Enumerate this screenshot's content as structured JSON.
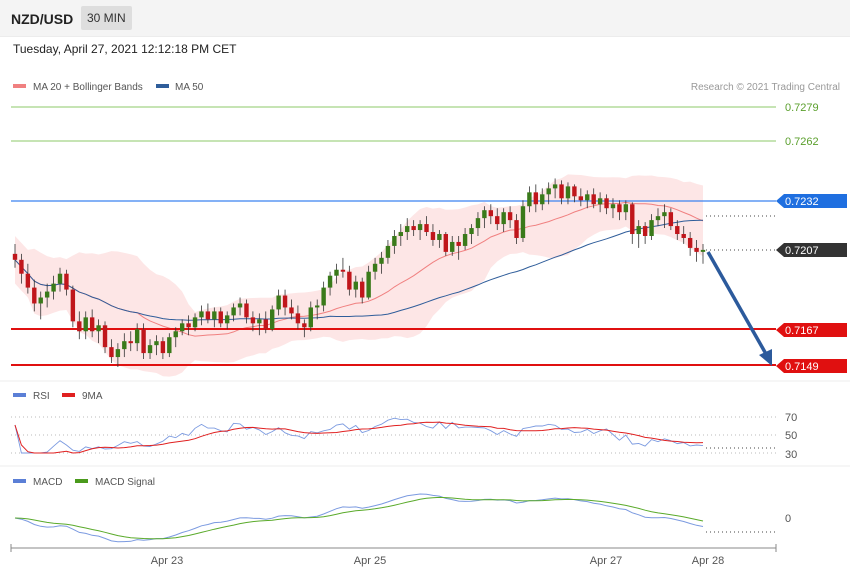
{
  "header": {
    "symbol": "NZD/USD",
    "timeframe": "30 MIN"
  },
  "timestamp": "Tuesday, April 27, 2021 12:12:18 PM CET",
  "legend": {
    "price": [
      {
        "label": "MA 20 + Bollinger Bands",
        "color": "#f08080"
      },
      {
        "label": "MA 50",
        "color": "#2f5d9a"
      }
    ],
    "rsi": [
      {
        "label": "RSI",
        "color": "#5b7fd6"
      },
      {
        "label": "9MA",
        "color": "#e02020"
      }
    ],
    "macd": [
      {
        "label": "MACD",
        "color": "#5b7fd6"
      },
      {
        "label": "MACD Signal",
        "color": "#4a9a1c"
      }
    ]
  },
  "credit": "Research © 2021 Trading Central",
  "chart_data": {
    "type": "candlestick",
    "x_labels": [
      "Apr 23",
      "Apr 25",
      "Apr 27",
      "Apr 28"
    ],
    "price_levels": [
      {
        "value": "0.7279",
        "kind": "resistance",
        "color": "#6db33f"
      },
      {
        "value": "0.7262",
        "kind": "resistance",
        "color": "#6db33f"
      },
      {
        "value": "0.7232",
        "kind": "pivot",
        "color": "#1f6fe0"
      },
      {
        "value": "0.7207",
        "kind": "last",
        "color": "#333333"
      },
      {
        "value": "0.7167",
        "kind": "support",
        "color": "#e01010"
      },
      {
        "value": "0.7149",
        "kind": "support",
        "color": "#e01010"
      }
    ],
    "forecast": {
      "from": 0.7207,
      "to": 0.7149,
      "direction": "down"
    },
    "price_range": [
      0.7149,
      0.7279
    ],
    "candles": [
      [
        0.7205,
        0.721,
        0.7198,
        0.7202
      ],
      [
        0.7202,
        0.7205,
        0.719,
        0.7195
      ],
      [
        0.7195,
        0.72,
        0.7185,
        0.7188
      ],
      [
        0.7188,
        0.7192,
        0.7176,
        0.718
      ],
      [
        0.718,
        0.7186,
        0.7172,
        0.7183
      ],
      [
        0.7183,
        0.719,
        0.7178,
        0.7186
      ],
      [
        0.7186,
        0.7194,
        0.7182,
        0.719
      ],
      [
        0.719,
        0.7198,
        0.7186,
        0.7195
      ],
      [
        0.7195,
        0.7197,
        0.7184,
        0.7187
      ],
      [
        0.7187,
        0.7189,
        0.7168,
        0.7171
      ],
      [
        0.7171,
        0.7176,
        0.7162,
        0.7166
      ],
      [
        0.7166,
        0.7176,
        0.7162,
        0.7173
      ],
      [
        0.7173,
        0.7177,
        0.7163,
        0.7166
      ],
      [
        0.7166,
        0.7172,
        0.716,
        0.7169
      ],
      [
        0.7169,
        0.7171,
        0.7155,
        0.7158
      ],
      [
        0.7158,
        0.7162,
        0.715,
        0.7153
      ],
      [
        0.7153,
        0.716,
        0.7148,
        0.7157
      ],
      [
        0.7157,
        0.7165,
        0.7153,
        0.7161
      ],
      [
        0.7161,
        0.7166,
        0.7156,
        0.716
      ],
      [
        0.716,
        0.717,
        0.7156,
        0.7167
      ],
      [
        0.7167,
        0.717,
        0.7152,
        0.7155
      ],
      [
        0.7155,
        0.7162,
        0.7152,
        0.7159
      ],
      [
        0.7159,
        0.7164,
        0.7154,
        0.7161
      ],
      [
        0.7161,
        0.7163,
        0.7152,
        0.7155
      ],
      [
        0.7155,
        0.7165,
        0.7153,
        0.7163
      ],
      [
        0.7163,
        0.7168,
        0.7158,
        0.7166
      ],
      [
        0.7166,
        0.7172,
        0.7164,
        0.717
      ],
      [
        0.717,
        0.7174,
        0.7164,
        0.7168
      ],
      [
        0.7168,
        0.7175,
        0.7166,
        0.7173
      ],
      [
        0.7173,
        0.7179,
        0.7169,
        0.7176
      ],
      [
        0.7176,
        0.718,
        0.717,
        0.7172
      ],
      [
        0.7172,
        0.7178,
        0.7168,
        0.7176
      ],
      [
        0.7176,
        0.7178,
        0.7168,
        0.717
      ],
      [
        0.717,
        0.7176,
        0.7167,
        0.7174
      ],
      [
        0.7174,
        0.718,
        0.7171,
        0.7178
      ],
      [
        0.7178,
        0.7183,
        0.7174,
        0.718
      ],
      [
        0.718,
        0.7182,
        0.717,
        0.7173
      ],
      [
        0.7173,
        0.7176,
        0.7166,
        0.717
      ],
      [
        0.717,
        0.7175,
        0.7164,
        0.7172
      ],
      [
        0.7172,
        0.7176,
        0.7165,
        0.7167
      ],
      [
        0.7167,
        0.7179,
        0.7166,
        0.7177
      ],
      [
        0.7177,
        0.7187,
        0.7174,
        0.7184
      ],
      [
        0.7184,
        0.7187,
        0.7174,
        0.7178
      ],
      [
        0.7178,
        0.7182,
        0.7172,
        0.7175
      ],
      [
        0.7175,
        0.7179,
        0.7167,
        0.717
      ],
      [
        0.717,
        0.7172,
        0.7163,
        0.7168
      ],
      [
        0.7168,
        0.7181,
        0.7166,
        0.7178
      ],
      [
        0.7178,
        0.7182,
        0.7172,
        0.7179
      ],
      [
        0.7179,
        0.7191,
        0.7176,
        0.7188
      ],
      [
        0.7188,
        0.7196,
        0.7184,
        0.7194
      ],
      [
        0.7194,
        0.72,
        0.719,
        0.7197
      ],
      [
        0.7197,
        0.7203,
        0.7193,
        0.7196
      ],
      [
        0.7196,
        0.7199,
        0.7184,
        0.7187
      ],
      [
        0.7187,
        0.7194,
        0.7183,
        0.7191
      ],
      [
        0.7191,
        0.7193,
        0.718,
        0.7183
      ],
      [
        0.7183,
        0.7199,
        0.7182,
        0.7196
      ],
      [
        0.7196,
        0.7203,
        0.7192,
        0.72
      ],
      [
        0.72,
        0.7206,
        0.7195,
        0.7203
      ],
      [
        0.7203,
        0.7212,
        0.72,
        0.7209
      ],
      [
        0.7209,
        0.7217,
        0.7205,
        0.7214
      ],
      [
        0.7214,
        0.722,
        0.7209,
        0.7216
      ],
      [
        0.7216,
        0.7223,
        0.7212,
        0.7219
      ],
      [
        0.7219,
        0.7222,
        0.7214,
        0.7217
      ],
      [
        0.7217,
        0.7222,
        0.7212,
        0.722
      ],
      [
        0.722,
        0.7224,
        0.7214,
        0.7216
      ],
      [
        0.7216,
        0.722,
        0.7209,
        0.7212
      ],
      [
        0.7212,
        0.7217,
        0.7208,
        0.7215
      ],
      [
        0.7215,
        0.7216,
        0.7204,
        0.7206
      ],
      [
        0.7206,
        0.7214,
        0.7204,
        0.7211
      ],
      [
        0.7211,
        0.7214,
        0.7202,
        0.7209
      ],
      [
        0.7209,
        0.7218,
        0.7207,
        0.7215
      ],
      [
        0.7215,
        0.722,
        0.721,
        0.7218
      ],
      [
        0.7218,
        0.7226,
        0.7214,
        0.7223
      ],
      [
        0.7223,
        0.7229,
        0.7218,
        0.7227
      ],
      [
        0.7227,
        0.723,
        0.722,
        0.7224
      ],
      [
        0.7224,
        0.7228,
        0.7217,
        0.722
      ],
      [
        0.722,
        0.7228,
        0.7216,
        0.7226
      ],
      [
        0.7226,
        0.7229,
        0.7218,
        0.7222
      ],
      [
        0.7222,
        0.7225,
        0.721,
        0.7213
      ],
      [
        0.7213,
        0.7232,
        0.7211,
        0.7229
      ],
      [
        0.7229,
        0.7239,
        0.7226,
        0.7236
      ],
      [
        0.7236,
        0.724,
        0.7226,
        0.723
      ],
      [
        0.723,
        0.7238,
        0.7227,
        0.7235
      ],
      [
        0.7235,
        0.7241,
        0.723,
        0.7238
      ],
      [
        0.7238,
        0.7243,
        0.7233,
        0.724
      ],
      [
        0.724,
        0.7242,
        0.723,
        0.7233
      ],
      [
        0.7233,
        0.7241,
        0.723,
        0.7239
      ],
      [
        0.7239,
        0.724,
        0.7231,
        0.7234
      ],
      [
        0.7234,
        0.7238,
        0.7229,
        0.7232
      ],
      [
        0.7232,
        0.7237,
        0.7228,
        0.7235
      ],
      [
        0.7235,
        0.7238,
        0.7228,
        0.723
      ],
      [
        0.723,
        0.7236,
        0.7226,
        0.7233
      ],
      [
        0.7233,
        0.7235,
        0.7225,
        0.7228
      ],
      [
        0.7228,
        0.7233,
        0.7223,
        0.723
      ],
      [
        0.723,
        0.7232,
        0.7222,
        0.7226
      ],
      [
        0.7226,
        0.7232,
        0.7222,
        0.723
      ],
      [
        0.723,
        0.7231,
        0.721,
        0.7215
      ],
      [
        0.7215,
        0.7222,
        0.7208,
        0.7219
      ],
      [
        0.7219,
        0.7221,
        0.721,
        0.7214
      ],
      [
        0.7214,
        0.7225,
        0.7212,
        0.7222
      ],
      [
        0.7222,
        0.7228,
        0.7219,
        0.7224
      ],
      [
        0.7224,
        0.723,
        0.7218,
        0.7226
      ],
      [
        0.7226,
        0.7228,
        0.7217,
        0.7219
      ],
      [
        0.7219,
        0.7222,
        0.7212,
        0.7215
      ],
      [
        0.7215,
        0.7219,
        0.721,
        0.7213
      ],
      [
        0.7213,
        0.7216,
        0.7204,
        0.7208
      ],
      [
        0.7208,
        0.7212,
        0.7201,
        0.7206
      ],
      [
        0.7206,
        0.721,
        0.72,
        0.7207
      ]
    ]
  }
}
